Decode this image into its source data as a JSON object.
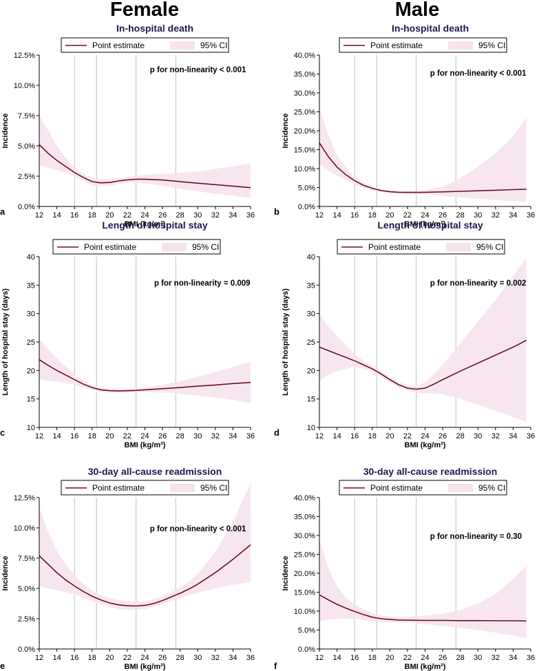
{
  "colors": {
    "line": "#6b0f1f",
    "ci_fill": "#f6e3ee",
    "ref_line": "#bfbfbf",
    "title": "#1a1a4e",
    "axis": "#000000"
  },
  "column_titles": [
    "Female",
    "Male"
  ],
  "legend": {
    "point_label": "Point estimate",
    "ci_label": "95% CI"
  },
  "chart_data": [
    {
      "id": "a",
      "letter": "a",
      "sex": "Female",
      "type": "line",
      "title": "In-hospital death",
      "xlabel": "BMI (kg/m²)",
      "ylabel": "Incidence",
      "xlim": [
        12,
        36
      ],
      "xticks": [
        12,
        14,
        16,
        18,
        20,
        22,
        24,
        26,
        28,
        30,
        32,
        34,
        36
      ],
      "ylim": [
        0,
        12.5
      ],
      "yticks": [
        0,
        2.5,
        5,
        7.5,
        10,
        12.5
      ],
      "ytick_labels": [
        "0.0%",
        "2.5%",
        "5.0%",
        "7.5%",
        "10.0%",
        "12.5%"
      ],
      "ref_lines": [
        16,
        18.5,
        23,
        27.5
      ],
      "annotation": "p for non-linearity < 0.001",
      "x": [
        12,
        13,
        14,
        15,
        16,
        17,
        18,
        19,
        20,
        21,
        22,
        23,
        24,
        25,
        26,
        27,
        28,
        30,
        32,
        34,
        36
      ],
      "y": [
        5.1,
        4.4,
        3.8,
        3.3,
        2.8,
        2.4,
        2.05,
        1.95,
        1.98,
        2.1,
        2.2,
        2.25,
        2.25,
        2.22,
        2.18,
        2.12,
        2.05,
        1.92,
        1.8,
        1.68,
        1.55
      ],
      "lower": [
        3.4,
        3.2,
        3.0,
        2.8,
        2.45,
        2.1,
        1.75,
        1.65,
        1.7,
        1.85,
        1.95,
        2.0,
        1.9,
        1.8,
        1.7,
        1.58,
        1.45,
        1.25,
        1.05,
        0.88,
        0.7
      ],
      "upper": [
        7.5,
        6.3,
        5.0,
        4.0,
        3.2,
        2.7,
        2.35,
        2.25,
        2.27,
        2.35,
        2.45,
        2.5,
        2.6,
        2.65,
        2.68,
        2.72,
        2.78,
        2.9,
        3.1,
        3.3,
        3.55
      ]
    },
    {
      "id": "b",
      "letter": "b",
      "sex": "Male",
      "type": "line",
      "title": "In-hospital death",
      "xlabel": "BMI (kg/m²)",
      "ylabel": "Incidence",
      "xlim": [
        12,
        36
      ],
      "xticks": [
        12,
        14,
        16,
        18,
        20,
        22,
        24,
        26,
        28,
        30,
        32,
        34,
        36
      ],
      "ylim": [
        0,
        40
      ],
      "yticks": [
        0,
        5,
        10,
        15,
        20,
        25,
        30,
        35,
        40
      ],
      "ytick_labels": [
        "0.0%",
        "5.0%",
        "10.0%",
        "15.0%",
        "20.0%",
        "25.0%",
        "30.0%",
        "35.0%",
        "40.0%"
      ],
      "ref_lines": [
        16,
        18.5,
        23,
        27.5
      ],
      "annotation": "p for non-linearity < 0.001",
      "x": [
        12,
        13,
        14,
        15,
        16,
        17,
        18,
        19,
        20,
        21,
        22,
        23,
        24,
        26,
        28,
        30,
        32,
        34,
        35.5
      ],
      "y": [
        16.8,
        13.2,
        10.4,
        8.4,
        6.8,
        5.6,
        4.8,
        4.2,
        3.9,
        3.75,
        3.7,
        3.7,
        3.75,
        3.85,
        4.0,
        4.15,
        4.3,
        4.45,
        4.55
      ],
      "lower": [
        11.0,
        9.5,
        8.2,
        7.0,
        5.9,
        5.0,
        4.3,
        3.8,
        3.5,
        3.4,
        3.35,
        3.3,
        3.2,
        2.8,
        2.4,
        2.0,
        1.7,
        1.4,
        1.2
      ],
      "upper": [
        26.0,
        19.0,
        13.5,
        10.2,
        7.8,
        6.3,
        5.3,
        4.6,
        4.3,
        4.1,
        4.05,
        4.1,
        4.3,
        5.3,
        7.5,
        10.5,
        14.0,
        18.5,
        23.5
      ]
    },
    {
      "id": "c",
      "letter": "c",
      "sex": "Female",
      "type": "line",
      "title": "Length of hospital stay",
      "xlabel": "BMI (kg/m²)",
      "ylabel": "Length of hospital stay (days)",
      "xlim": [
        12,
        36
      ],
      "xticks": [
        12,
        14,
        16,
        18,
        20,
        22,
        24,
        26,
        28,
        30,
        32,
        34,
        36
      ],
      "ylim": [
        10,
        40
      ],
      "yticks": [
        10,
        15,
        20,
        25,
        30,
        35,
        40
      ],
      "ytick_labels": [
        "10",
        "15",
        "20",
        "25",
        "30",
        "35",
        "40"
      ],
      "ref_lines": [
        16,
        18.5,
        23,
        27.5
      ],
      "annotation": "p for non-linearity = 0.009",
      "x": [
        12,
        13,
        14,
        15,
        16,
        17,
        18,
        19,
        20,
        21,
        22,
        23,
        24,
        26,
        28,
        30,
        32,
        34,
        36
      ],
      "y": [
        21.9,
        20.9,
        20.0,
        19.2,
        18.4,
        17.6,
        17.0,
        16.6,
        16.45,
        16.4,
        16.45,
        16.5,
        16.6,
        16.8,
        17.0,
        17.25,
        17.45,
        17.7,
        17.9
      ],
      "lower": [
        18.5,
        18.2,
        18.0,
        17.8,
        17.5,
        17.0,
        16.55,
        16.2,
        16.1,
        16.05,
        16.1,
        16.2,
        16.2,
        16.1,
        15.9,
        15.6,
        15.2,
        14.8,
        14.3
      ],
      "upper": [
        25.5,
        23.8,
        22.2,
        20.7,
        19.3,
        18.2,
        17.45,
        17.0,
        16.8,
        16.75,
        16.8,
        16.85,
        17.0,
        17.5,
        18.1,
        18.9,
        19.7,
        20.6,
        21.6
      ]
    },
    {
      "id": "d",
      "letter": "d",
      "sex": "Male",
      "type": "line",
      "title": "Length of hospital stay",
      "xlabel": "BMI (kg/m²)",
      "ylabel": "Length of hospital stay (days)",
      "xlim": [
        12,
        36
      ],
      "xticks": [
        12,
        14,
        16,
        18,
        20,
        22,
        24,
        26,
        28,
        30,
        32,
        34,
        36
      ],
      "ylim": [
        10,
        40
      ],
      "yticks": [
        10,
        15,
        20,
        25,
        30,
        35,
        40
      ],
      "ytick_labels": [
        "10",
        "15",
        "20",
        "25",
        "30",
        "35",
        "40"
      ],
      "ref_lines": [
        16,
        18.5,
        23,
        27.5
      ],
      "annotation": "p for non-linearity = 0.002",
      "x": [
        12,
        13,
        14,
        15,
        16,
        17,
        18,
        19,
        20,
        21,
        22,
        23,
        24,
        25,
        26,
        28,
        30,
        32,
        34,
        35.5
      ],
      "y": [
        24.1,
        23.5,
        22.9,
        22.3,
        21.7,
        21.0,
        20.3,
        19.4,
        18.4,
        17.5,
        16.9,
        16.7,
        16.9,
        17.6,
        18.4,
        19.9,
        21.3,
        22.7,
        24.1,
        25.3
      ],
      "lower": [
        18.3,
        19.2,
        19.9,
        20.3,
        20.6,
        20.3,
        19.7,
        18.9,
        17.9,
        17.0,
        16.4,
        16.1,
        16.0,
        16.0,
        15.8,
        15.0,
        14.0,
        12.9,
        11.8,
        11.0
      ],
      "upper": [
        30.0,
        27.8,
        26.0,
        24.4,
        22.9,
        21.7,
        20.9,
        19.9,
        18.9,
        18.0,
        17.4,
        17.3,
        17.9,
        19.4,
        21.0,
        24.8,
        28.6,
        32.4,
        36.6,
        39.8
      ]
    },
    {
      "id": "e",
      "letter": "e",
      "sex": "Female",
      "type": "line",
      "title": "30-day all-cause readmission",
      "xlabel": "BMI (kg/m²)",
      "ylabel": "Incidence",
      "xlim": [
        12,
        36
      ],
      "xticks": [
        12,
        14,
        16,
        18,
        20,
        22,
        24,
        26,
        28,
        30,
        32,
        34,
        36
      ],
      "ylim": [
        0,
        12.5
      ],
      "yticks": [
        0,
        2.5,
        5,
        7.5,
        10,
        12.5
      ],
      "ytick_labels": [
        "0.0%",
        "2.5%",
        "5.0%",
        "7.5%",
        "10.0%",
        "12.5%"
      ],
      "ref_lines": [
        16,
        18.5,
        23,
        27.5
      ],
      "annotation": "p for non-linearity < 0.001",
      "x": [
        12,
        13,
        14,
        15,
        16,
        17,
        18,
        19,
        20,
        21,
        22,
        23,
        24,
        25,
        26,
        27,
        28,
        29,
        30,
        32,
        34,
        36
      ],
      "y": [
        7.7,
        7.0,
        6.3,
        5.7,
        5.2,
        4.75,
        4.35,
        4.05,
        3.8,
        3.65,
        3.57,
        3.55,
        3.6,
        3.75,
        4.0,
        4.3,
        4.6,
        4.95,
        5.35,
        6.3,
        7.4,
        8.6
      ],
      "lower": [
        5.2,
        5.0,
        4.85,
        4.7,
        4.5,
        4.25,
        3.95,
        3.7,
        3.45,
        3.3,
        3.25,
        3.25,
        3.3,
        3.45,
        3.7,
        3.95,
        4.2,
        4.45,
        4.65,
        5.0,
        5.3,
        5.5
      ],
      "upper": [
        11.7,
        9.7,
        8.1,
        7.0,
        6.1,
        5.35,
        4.8,
        4.45,
        4.2,
        4.05,
        3.95,
        3.9,
        3.95,
        4.1,
        4.35,
        4.7,
        5.1,
        5.55,
        6.2,
        8.0,
        10.5,
        13.7
      ]
    },
    {
      "id": "f",
      "letter": "f",
      "sex": "Male",
      "type": "line",
      "title": "30-day all-cause readmission",
      "xlabel": "BMI (kg/m²)",
      "ylabel": "Incidence",
      "xlim": [
        12,
        36
      ],
      "xticks": [
        12,
        14,
        16,
        18,
        20,
        22,
        24,
        26,
        28,
        30,
        32,
        34,
        36
      ],
      "ylim": [
        0,
        40
      ],
      "yticks": [
        0,
        5,
        10,
        15,
        20,
        25,
        30,
        35,
        40
      ],
      "ytick_labels": [
        "0.0%",
        "5.0%",
        "10.0%",
        "15.0%",
        "20.0%",
        "25.0%",
        "30.0%",
        "35.0%",
        "40.0%"
      ],
      "ref_lines": [
        16,
        18.5,
        23,
        27.5
      ],
      "annotation": "p for non-linearity = 0.30",
      "x": [
        12,
        13,
        14,
        15,
        16,
        17,
        18,
        19,
        20,
        21,
        22,
        24,
        26,
        28,
        30,
        32,
        34,
        35.5
      ],
      "y": [
        14.3,
        13.0,
        11.8,
        10.8,
        9.9,
        9.1,
        8.4,
        8.0,
        7.8,
        7.65,
        7.6,
        7.55,
        7.55,
        7.5,
        7.5,
        7.45,
        7.45,
        7.4
      ],
      "lower": [
        7.2,
        7.7,
        7.9,
        8.0,
        8.0,
        7.7,
        7.3,
        7.1,
        7.0,
        7.0,
        6.9,
        6.6,
        6.1,
        5.6,
        5.0,
        4.3,
        3.5,
        2.9
      ],
      "upper": [
        29.0,
        21.5,
        16.5,
        13.6,
        11.8,
        10.5,
        9.5,
        8.9,
        8.6,
        8.5,
        8.5,
        8.8,
        9.3,
        10.3,
        12.0,
        14.5,
        18.5,
        22.0
      ]
    }
  ]
}
